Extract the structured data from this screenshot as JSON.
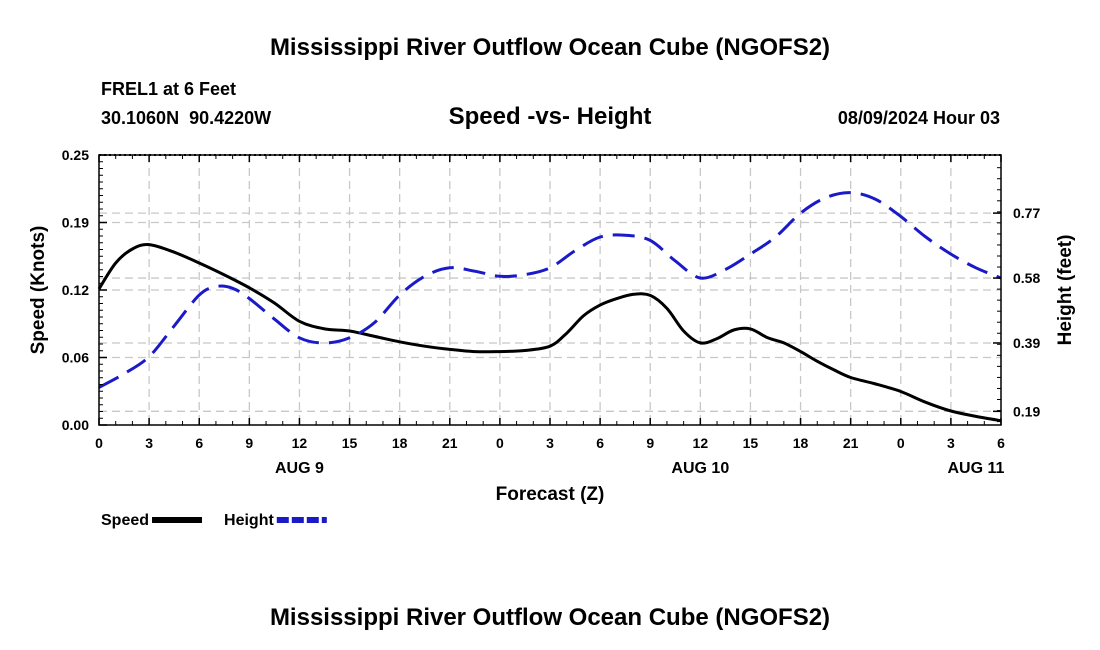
{
  "page": {
    "title": "Mississippi River Outflow Ocean Cube (NGOFS2)",
    "footer_title": "Mississippi River Outflow Ocean Cube (NGOFS2)",
    "station_line": "FREL1 at 6 Feet",
    "coords_line": "30.1060N  90.4220W",
    "chart_title": "Speed -vs- Height",
    "datetime": "08/09/2024 Hour 03"
  },
  "chart_data": {
    "type": "line",
    "title": "Speed -vs- Height",
    "xlabel": "Forecast (Z)",
    "ylabel_left": "Speed (Knots)",
    "ylabel_right": "Height (feet)",
    "x_unit": "forecast hours from 08/09 00Z",
    "xlim": [
      0,
      54
    ],
    "x_ticks": [
      {
        "x": 0,
        "label": "0"
      },
      {
        "x": 3,
        "label": "3"
      },
      {
        "x": 6,
        "label": "6"
      },
      {
        "x": 9,
        "label": "9"
      },
      {
        "x": 12,
        "label": "12"
      },
      {
        "x": 15,
        "label": "15"
      },
      {
        "x": 18,
        "label": "18"
      },
      {
        "x": 21,
        "label": "21"
      },
      {
        "x": 24,
        "label": "0"
      },
      {
        "x": 27,
        "label": "3"
      },
      {
        "x": 30,
        "label": "6"
      },
      {
        "x": 33,
        "label": "9"
      },
      {
        "x": 36,
        "label": "12"
      },
      {
        "x": 39,
        "label": "15"
      },
      {
        "x": 42,
        "label": "18"
      },
      {
        "x": 45,
        "label": "21"
      },
      {
        "x": 48,
        "label": "0"
      },
      {
        "x": 51,
        "label": "3"
      },
      {
        "x": 54,
        "label": "6"
      }
    ],
    "date_labels": [
      {
        "x": 12,
        "label": "AUG 9"
      },
      {
        "x": 36,
        "label": "AUG 10"
      },
      {
        "x": 52.5,
        "label": "AUG 11"
      }
    ],
    "y_left": {
      "lim": [
        0,
        0.25
      ],
      "ticks": [
        {
          "v": 0.0,
          "label": "0.00"
        },
        {
          "v": 0.0625,
          "label": "0.06"
        },
        {
          "v": 0.125,
          "label": "0.12"
        },
        {
          "v": 0.1875,
          "label": "0.19"
        },
        {
          "v": 0.25,
          "label": "0.25"
        }
      ]
    },
    "y_right": {
      "lim": [
        0.15,
        0.94
      ],
      "ticks": [
        {
          "v": 0.19,
          "label": "0.19"
        },
        {
          "v": 0.39,
          "label": "0.39"
        },
        {
          "v": 0.58,
          "label": "0.58"
        },
        {
          "v": 0.77,
          "label": "0.77"
        }
      ]
    },
    "series": [
      {
        "name": "Speed",
        "axis": "left",
        "color": "#000000",
        "dash": "solid",
        "x": [
          0,
          1,
          2,
          3,
          4.5,
          6,
          7.5,
          9,
          10.5,
          12,
          13.5,
          15,
          16.5,
          18,
          19.5,
          21,
          22.5,
          24,
          25.5,
          27,
          28,
          29,
          30,
          31,
          32,
          33,
          34,
          35,
          36,
          37,
          38,
          39,
          40,
          41,
          42,
          43,
          44,
          45,
          46.5,
          48,
          49.5,
          51,
          52.5,
          54
        ],
        "values": [
          0.126,
          0.15,
          0.163,
          0.167,
          0.16,
          0.15,
          0.139,
          0.127,
          0.113,
          0.096,
          0.089,
          0.087,
          0.082,
          0.077,
          0.073,
          0.07,
          0.068,
          0.068,
          0.069,
          0.073,
          0.085,
          0.101,
          0.111,
          0.117,
          0.121,
          0.12,
          0.108,
          0.087,
          0.076,
          0.08,
          0.088,
          0.089,
          0.081,
          0.076,
          0.068,
          0.059,
          0.051,
          0.044,
          0.038,
          0.031,
          0.021,
          0.013,
          0.008,
          0.004
        ]
      },
      {
        "name": "Height",
        "axis": "right",
        "color": "#1a1ac8",
        "dash": "dashed",
        "x": [
          0,
          1.5,
          3,
          4.5,
          6,
          7,
          8,
          9,
          10.5,
          12,
          13.5,
          15,
          16.5,
          18,
          19.5,
          21,
          22.5,
          24,
          25.5,
          27,
          28.5,
          30,
          31.5,
          33,
          34.5,
          36,
          37.5,
          39,
          40.5,
          42,
          43.5,
          45,
          46.5,
          48,
          49.5,
          51,
          52.5,
          54
        ],
        "values": [
          0.26,
          0.3,
          0.35,
          0.44,
          0.53,
          0.555,
          0.55,
          0.52,
          0.46,
          0.405,
          0.39,
          0.405,
          0.45,
          0.53,
          0.585,
          0.61,
          0.6,
          0.585,
          0.59,
          0.61,
          0.66,
          0.7,
          0.705,
          0.69,
          0.63,
          0.58,
          0.605,
          0.65,
          0.7,
          0.77,
          0.815,
          0.83,
          0.81,
          0.76,
          0.7,
          0.65,
          0.61,
          0.58
        ]
      }
    ],
    "legend": {
      "placement": "bottom-left",
      "entries": [
        {
          "label": "Speed",
          "color": "#000000",
          "dash": "solid"
        },
        {
          "label": "Height",
          "color": "#1a1ac8",
          "dash": "dashed"
        }
      ]
    },
    "grid": true
  }
}
